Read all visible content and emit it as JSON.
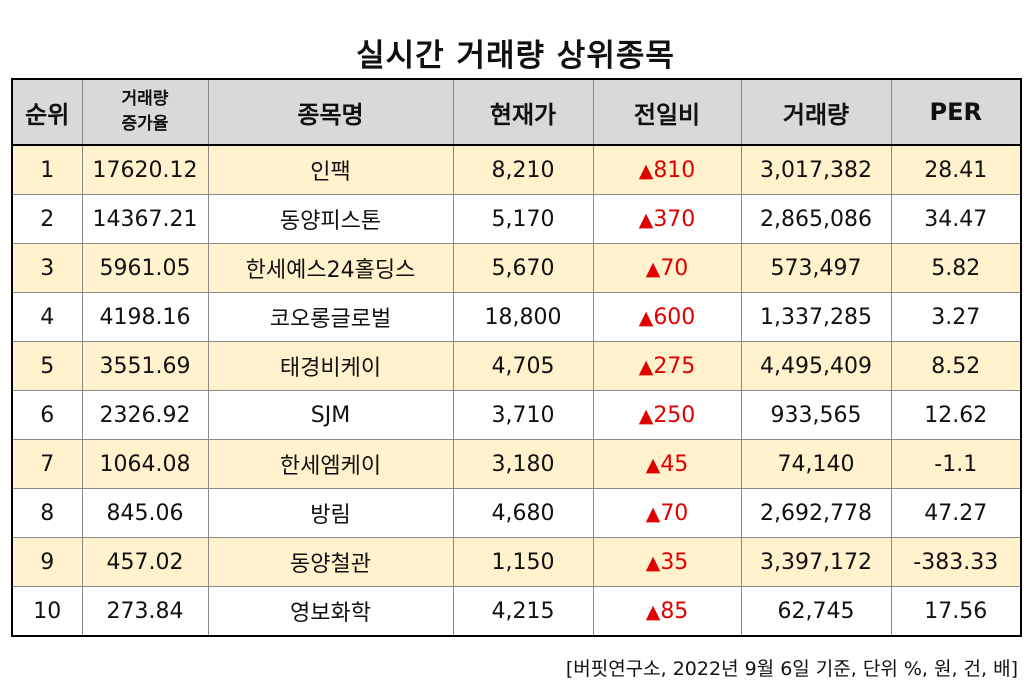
{
  "title": "실시간 거래량 상위종목",
  "headers": {
    "rank": "순위",
    "increase_line1": "거래량",
    "increase_line2": "증가율",
    "name": "종목명",
    "price": "현재가",
    "change": "전일비",
    "volume": "거래량",
    "per": "PER"
  },
  "up_symbol": "▲",
  "rows": [
    {
      "rank": "1",
      "increase": "17620.12",
      "name": "인팩",
      "price": "8,210",
      "change": "810",
      "volume": "3,017,382",
      "per": "28.41"
    },
    {
      "rank": "2",
      "increase": "14367.21",
      "name": "동양피스톤",
      "price": "5,170",
      "change": "370",
      "volume": "2,865,086",
      "per": "34.47"
    },
    {
      "rank": "3",
      "increase": "5961.05",
      "name": "한세예스24홀딩스",
      "price": "5,670",
      "change": "70",
      "volume": "573,497",
      "per": "5.82"
    },
    {
      "rank": "4",
      "increase": "4198.16",
      "name": "코오롱글로벌",
      "price": "18,800",
      "change": "600",
      "volume": "1,337,285",
      "per": "3.27"
    },
    {
      "rank": "5",
      "increase": "3551.69",
      "name": "태경비케이",
      "price": "4,705",
      "change": "275",
      "volume": "4,495,409",
      "per": "8.52"
    },
    {
      "rank": "6",
      "increase": "2326.92",
      "name": "SJM",
      "price": "3,710",
      "change": "250",
      "volume": "933,565",
      "per": "12.62"
    },
    {
      "rank": "7",
      "increase": "1064.08",
      "name": "한세엠케이",
      "price": "3,180",
      "change": "45",
      "volume": "74,140",
      "per": "-1.1"
    },
    {
      "rank": "8",
      "increase": "845.06",
      "name": "방림",
      "price": "4,680",
      "change": "70",
      "volume": "2,692,778",
      "per": "47.27"
    },
    {
      "rank": "9",
      "increase": "457.02",
      "name": "동양철관",
      "price": "1,150",
      "change": "35",
      "volume": "3,397,172",
      "per": "-383.33"
    },
    {
      "rank": "10",
      "increase": "273.84",
      "name": "영보화학",
      "price": "4,215",
      "change": "85",
      "volume": "62,745",
      "per": "17.56"
    }
  ],
  "source": "[버핏연구소, 2022년 9월 6일 기준, 단위 %, 원, 건, 배]",
  "colors": {
    "header_bg": "#d9d9d9",
    "alt_row_bg": "#fff2cc",
    "up": "#e00000"
  }
}
